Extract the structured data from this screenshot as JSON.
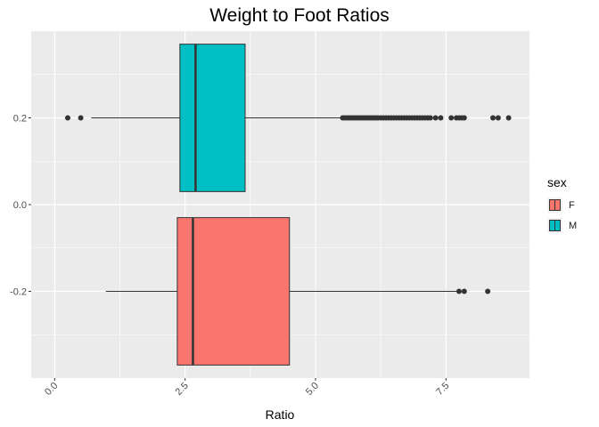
{
  "chart_data": {
    "type": "boxplot",
    "title": "Weight to Foot Ratios",
    "xlabel": "Ratio",
    "ylabel": "",
    "x_ticks": [
      "0.0",
      "2.5",
      "5.0",
      "7.5"
    ],
    "x_tick_values": [
      0,
      2.5,
      5,
      7.5
    ],
    "y_ticks": [
      "0.2",
      "0.0",
      "-0.2"
    ],
    "y_tick_values": [
      0.2,
      0.0,
      -0.2
    ],
    "xlim": [
      -0.45,
      9.1
    ],
    "ylim": [
      -0.4,
      0.4
    ],
    "orientation": "horizontal",
    "legend_title": "sex",
    "legend_position": "right",
    "grid": true,
    "series": [
      {
        "name": "F",
        "color": "#F8766D",
        "y_center": -0.2,
        "box_halfwidth": 0.17,
        "whisker_low": 0.98,
        "q1": 2.35,
        "median": 2.65,
        "q3": 4.5,
        "whisker_high": 7.7,
        "outliers": [
          7.75,
          7.85,
          8.3
        ]
      },
      {
        "name": "M",
        "color": "#00BFC4",
        "y_center": 0.2,
        "box_halfwidth": 0.17,
        "whisker_low": 0.7,
        "q1": 2.4,
        "median": 2.7,
        "q3": 3.65,
        "whisker_high": 5.5,
        "outliers": [
          0.25,
          0.5,
          5.52,
          5.56,
          5.6,
          5.64,
          5.68,
          5.72,
          5.76,
          5.8,
          5.84,
          5.88,
          5.92,
          5.96,
          6.0,
          6.04,
          6.08,
          6.12,
          6.16,
          6.2,
          6.25,
          6.3,
          6.35,
          6.4,
          6.45,
          6.5,
          6.55,
          6.6,
          6.65,
          6.7,
          6.75,
          6.8,
          6.85,
          6.9,
          6.95,
          7.0,
          7.05,
          7.1,
          7.15,
          7.2,
          7.3,
          7.4,
          7.6,
          7.7,
          7.75,
          7.8,
          7.85,
          8.4,
          8.5,
          8.7
        ]
      }
    ]
  }
}
